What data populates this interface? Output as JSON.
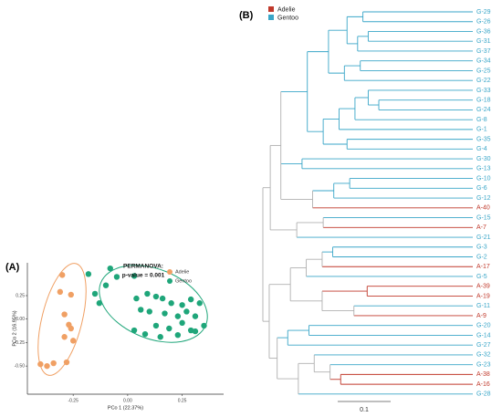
{
  "chart_data": [
    {
      "type": "scatter",
      "panel": "(A)",
      "annotations": [
        "PERMANOVA:",
        "p-value = 0.001"
      ],
      "x_label": "PCo 1 (22.37%)",
      "y_label": "PCo 2 (16.95%)",
      "xlim": [
        -0.46,
        0.44
      ],
      "ylim": [
        -0.8,
        0.6
      ],
      "xticks": [
        -0.25,
        {
          "value": 0,
          "label": "0.00"
        },
        0.25
      ],
      "yticks": [
        {
          "value": -0.5,
          "label": "-0.50"
        },
        -0.25,
        {
          "value": 0,
          "label": "0.00"
        },
        0.25
      ],
      "legend": "top-right",
      "series": [
        {
          "name": "Adelie",
          "color": "#f0a064",
          "x": [
            -0.3,
            -0.31,
            -0.26,
            -0.29,
            -0.27,
            -0.26,
            -0.29,
            -0.25,
            -0.4,
            -0.37,
            -0.34,
            -0.28
          ],
          "values": [
            0.47,
            0.29,
            0.26,
            0.05,
            -0.06,
            -0.1,
            -0.19,
            -0.23,
            -0.48,
            -0.5,
            -0.47,
            -0.46
          ]
        },
        {
          "name": "Gentoo",
          "color": "#1fa67a",
          "x": [
            -0.18,
            -0.08,
            -0.05,
            -0.15,
            -0.1,
            0.03,
            0.09,
            0.13,
            0.16,
            0.04,
            0.2,
            0.25,
            0.29,
            0.33,
            0.06,
            0.1,
            0.17,
            0.23,
            0.27,
            0.31,
            0.13,
            0.19,
            0.25,
            0.29,
            0.35,
            0.08,
            0.15,
            0.23,
            0.31,
            0.03,
            -0.13
          ],
          "values": [
            0.48,
            0.54,
            0.45,
            0.27,
            0.36,
            0.46,
            0.27,
            0.24,
            0.22,
            0.22,
            0.17,
            0.15,
            0.21,
            0.17,
            0.1,
            0.08,
            0.06,
            0.03,
            0.08,
            0.03,
            -0.07,
            -0.1,
            -0.04,
            -0.12,
            -0.07,
            -0.16,
            -0.19,
            -0.17,
            -0.13,
            -0.12,
            0.17
          ]
        }
      ]
    },
    {
      "type": "tree",
      "panel": "(B)",
      "scale": 0.1,
      "mixed_color": "#b0b0b0",
      "groups": [
        {
          "name": "Adelie",
          "color": "#c0392b"
        },
        {
          "name": "Gentoo",
          "color": "#3aa6c8"
        }
      ],
      "tree": {
        "children": [
          {
            "length": 0.014,
            "children": [
              {
                "length": 0.02,
                "children": [
                  {
                    "length": 0.05,
                    "children": [
                      {
                        "length": 0.04,
                        "children": [
                          {
                            "length": 0.035,
                            "children": [
                              {
                                "length": 0.03,
                                "children": [
                                  {
                                    "name": "G-29",
                                    "group": "Gentoo"
                                  },
                                  {
                                    "name": "G-26",
                                    "group": "Gentoo"
                                  }
                                ]
                              },
                              {
                                "length": 0.02,
                                "children": [
                                  {
                                    "length": 0.02,
                                    "children": [
                                      {
                                        "name": "G-36",
                                        "group": "Gentoo"
                                      },
                                      {
                                        "name": "G-31",
                                        "group": "Gentoo"
                                      }
                                    ]
                                  },
                                  {
                                    "name": "G-37",
                                    "group": "Gentoo"
                                  }
                                ]
                              }
                            ]
                          },
                          {
                            "length": 0.03,
                            "children": [
                              {
                                "length": 0.03,
                                "children": [
                                  {
                                    "name": "G-34",
                                    "group": "Gentoo"
                                  },
                                  {
                                    "name": "G-25",
                                    "group": "Gentoo"
                                  }
                                ]
                              },
                              {
                                "name": "G-22",
                                "group": "Gentoo"
                              }
                            ]
                          }
                        ]
                      },
                      {
                        "length": 0.03,
                        "children": [
                          {
                            "length": 0.03,
                            "children": [
                              {
                                "length": 0.03,
                                "children": [
                                  {
                                    "length": 0.025,
                                    "children": [
                                      {
                                        "name": "G-33",
                                        "group": "Gentoo"
                                      },
                                      {
                                        "length": 0.02,
                                        "children": [
                                          {
                                            "name": "G-18",
                                            "group": "Gentoo"
                                          },
                                          {
                                            "name": "G-24",
                                            "group": "Gentoo"
                                          }
                                        ]
                                      }
                                    ]
                                  },
                                  {
                                    "name": "G-8",
                                    "group": "Gentoo"
                                  }
                                ]
                              },
                              {
                                "name": "G-1",
                                "group": "Gentoo"
                              }
                            ]
                          },
                          {
                            "length": 0.045,
                            "children": [
                              {
                                "name": "G-35",
                                "group": "Gentoo"
                              },
                              {
                                "name": "G-4",
                                "group": "Gentoo"
                              }
                            ]
                          }
                        ]
                      }
                    ]
                  },
                  {
                    "length": 0.04,
                    "children": [
                      {
                        "name": "G-30",
                        "group": "Gentoo"
                      },
                      {
                        "name": "G-13",
                        "group": "Gentoo"
                      }
                    ]
                  },
                  {
                    "length": 0.06,
                    "children": [
                      {
                        "length": 0.04,
                        "children": [
                          {
                            "length": 0.03,
                            "children": [
                              {
                                "name": "G-10",
                                "group": "Gentoo"
                              },
                              {
                                "name": "G-6",
                                "group": "Gentoo"
                              }
                            ]
                          },
                          {
                            "name": "G-12",
                            "group": "Gentoo"
                          }
                        ]
                      },
                      {
                        "name": "A-40",
                        "group": "Adelie"
                      }
                    ]
                  }
                ]
              },
              {
                "length": 0.05,
                "children": [
                  {
                    "length": 0.05,
                    "children": [
                      {
                        "name": "G-15",
                        "group": "Gentoo"
                      },
                      {
                        "name": "A-7",
                        "group": "Adelie"
                      }
                    ]
                  },
                  {
                    "name": "G-21",
                    "group": "Gentoo"
                  }
                ]
              }
            ]
          },
          {
            "length": 0.012,
            "children": [
              {
                "length": 0.04,
                "children": [
                  {
                    "length": 0.03,
                    "children": [
                      {
                        "length": 0.03,
                        "children": [
                          {
                            "length": 0.02,
                            "children": [
                              {
                                "name": "G-3",
                                "group": "Gentoo"
                              },
                              {
                                "name": "G-2",
                                "group": "Gentoo"
                              }
                            ]
                          },
                          {
                            "name": "A-17",
                            "group": "Adelie"
                          }
                        ]
                      },
                      {
                        "name": "G-5",
                        "group": "Gentoo"
                      }
                    ]
                  },
                  {
                    "length": 0.06,
                    "children": [
                      {
                        "length": 0.085,
                        "children": [
                          {
                            "name": "A-39",
                            "group": "Adelie"
                          },
                          {
                            "name": "A-19",
                            "group": "Adelie"
                          }
                        ]
                      },
                      {
                        "length": 0.06,
                        "children": [
                          {
                            "name": "G-11",
                            "group": "Gentoo"
                          },
                          {
                            "name": "A-9",
                            "group": "Adelie"
                          }
                        ]
                      }
                    ]
                  }
                ]
              },
              {
                "length": 0.015,
                "children": [
                  {
                    "length": 0.02,
                    "children": [
                      {
                        "length": 0.04,
                        "children": [
                          {
                            "name": "G-20",
                            "group": "Gentoo"
                          },
                          {
                            "name": "G-14",
                            "group": "Gentoo"
                          }
                        ]
                      },
                      {
                        "name": "G-27",
                        "group": "Gentoo"
                      }
                    ]
                  },
                  {
                    "length": 0.04,
                    "children": [
                      {
                        "length": 0.03,
                        "children": [
                          {
                            "name": "G-32",
                            "group": "Gentoo"
                          },
                          {
                            "length": 0.03,
                            "children": [
                              {
                                "name": "G-23",
                                "group": "Gentoo"
                              },
                              {
                                "length": 0.02,
                                "children": [
                                  {
                                    "name": "A-38",
                                    "group": "Adelie"
                                  },
                                  {
                                    "name": "A-16",
                                    "group": "Adelie"
                                  }
                                ]
                              }
                            ]
                          }
                        ]
                      },
                      {
                        "name": "G-28",
                        "group": "Gentoo"
                      }
                    ]
                  }
                ]
              }
            ]
          }
        ]
      }
    }
  ]
}
